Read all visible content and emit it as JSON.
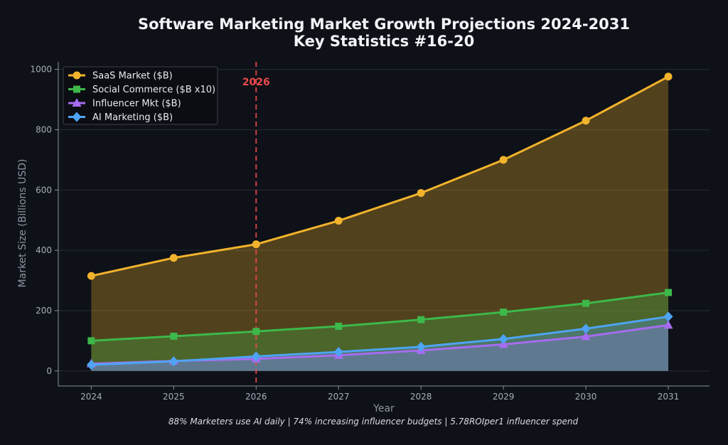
{
  "chart_data": {
    "type": "area",
    "title": "Software Marketing Market Growth Projections 2024-2031",
    "subtitle": "Key Statistics #16-20",
    "xlabel": "Year",
    "ylabel": "Market Size (Billions USD)",
    "x": [
      2024,
      2025,
      2026,
      2027,
      2028,
      2029,
      2030,
      2031
    ],
    "xlim": [
      2023.6,
      2031.5
    ],
    "ylim": [
      -50,
      1025
    ],
    "yticks": [
      0,
      200,
      400,
      600,
      800,
      1000
    ],
    "grid": true,
    "legend_position": "top-left",
    "series": [
      {
        "name": "SaaS Market ($B)",
        "values": [
          315,
          375,
          420,
          498,
          590,
          700,
          830,
          976
        ],
        "color": "#f2b32c",
        "marker": "circle"
      },
      {
        "name": "Social Commerce ($B x10)",
        "values": [
          100,
          115,
          131,
          148,
          170,
          195,
          224,
          260
        ],
        "color": "#3db84a",
        "marker": "square"
      },
      {
        "name": "Influencer Mkt ($B)",
        "values": [
          24,
          33,
          40,
          52,
          68,
          88,
          114,
          152
        ],
        "color": "#a66cf0",
        "marker": "triangle"
      },
      {
        "name": "AI Marketing ($B)",
        "values": [
          20,
          32,
          48,
          63,
          80,
          106,
          140,
          180
        ],
        "color": "#4ea4f4",
        "marker": "diamond"
      }
    ],
    "annotations": [
      {
        "x": 2026,
        "label": "2026",
        "color": "#ef4a4a",
        "style": "dashed-vertical"
      }
    ],
    "footer": "88% Marketers use AI daily | 74% increasing influencer budgets | 5.78ROIper1 influencer spend"
  }
}
